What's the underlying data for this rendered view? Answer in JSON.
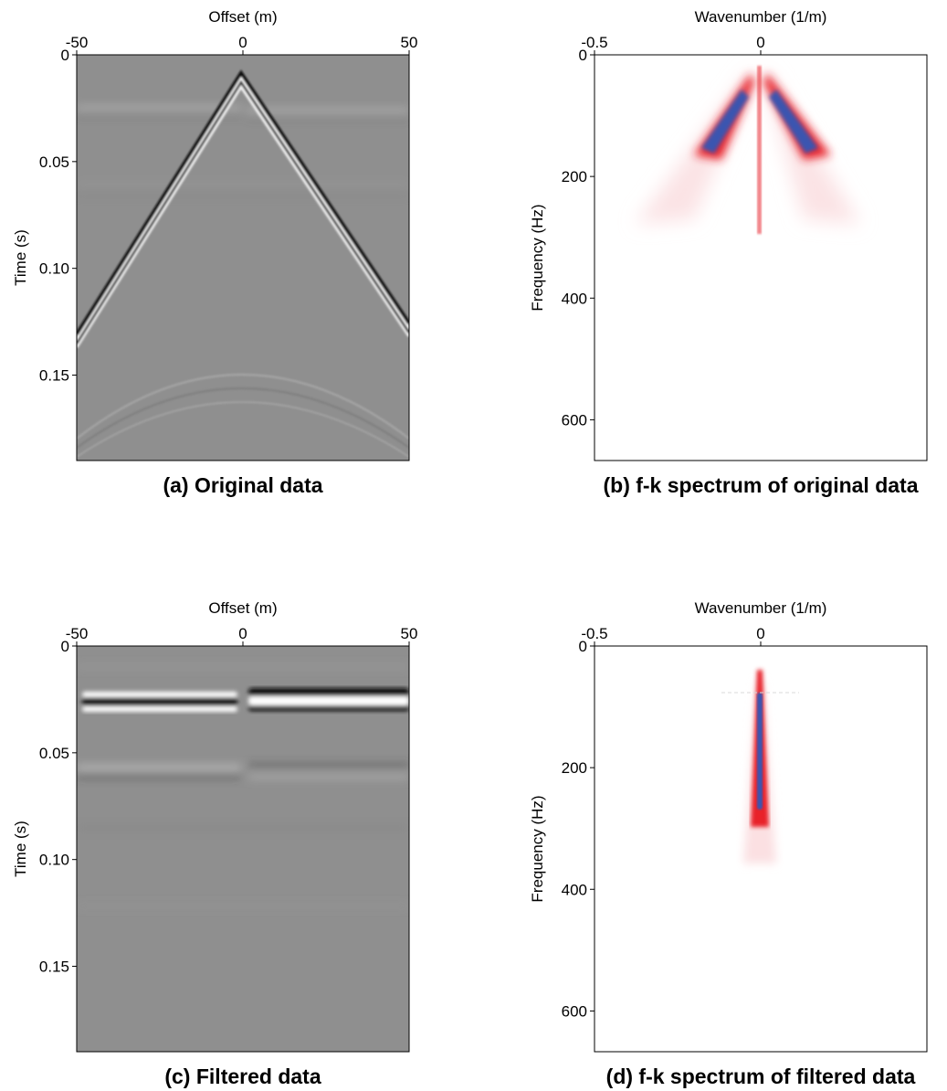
{
  "panels": [
    {
      "id": "a",
      "kind": "seismic",
      "caption": "(a) Original data",
      "x_axis_title": "Offset (m)",
      "y_axis_title": "Time (s)",
      "x_ticks": [
        {
          "value": -50,
          "label": "-50"
        },
        {
          "value": 0,
          "label": "0"
        },
        {
          "value": 50,
          "label": "50"
        }
      ],
      "y_ticks": [
        {
          "value": 0,
          "label": "0"
        },
        {
          "value": 0.05,
          "label": "0.05"
        },
        {
          "value": 0.1,
          "label": "0.10"
        },
        {
          "value": 0.15,
          "label": "0.15"
        }
      ],
      "xlim": [
        -50,
        50
      ],
      "ylim": [
        0,
        0.19
      ],
      "background_color": "#8f8f8f"
    },
    {
      "id": "b",
      "kind": "spectrum",
      "caption": "(b) f-k spectrum of original data",
      "x_axis_title": "Wavenumber (1/m)",
      "y_axis_title": "Frequency (Hz)",
      "x_ticks": [
        {
          "value": -0.5,
          "label": "-0.5"
        },
        {
          "value": 0,
          "label": "0"
        }
      ],
      "y_ticks": [
        {
          "value": 0,
          "label": "0"
        },
        {
          "value": 200,
          "label": "200"
        },
        {
          "value": 400,
          "label": "400"
        },
        {
          "value": 600,
          "label": "600"
        }
      ],
      "xlim": [
        -0.5,
        0.5
      ],
      "ylim": [
        0,
        667
      ]
    },
    {
      "id": "c",
      "kind": "seismic",
      "caption": "(c) Filtered data",
      "x_axis_title": "Offset (m)",
      "y_axis_title": "Time (s)",
      "x_ticks": [
        {
          "value": -50,
          "label": "-50"
        },
        {
          "value": 0,
          "label": "0"
        },
        {
          "value": 50,
          "label": "50"
        }
      ],
      "y_ticks": [
        {
          "value": 0,
          "label": "0"
        },
        {
          "value": 0.05,
          "label": "0.05"
        },
        {
          "value": 0.1,
          "label": "0.10"
        },
        {
          "value": 0.15,
          "label": "0.15"
        }
      ],
      "xlim": [
        -50,
        50
      ],
      "ylim": [
        0,
        0.19
      ],
      "background_color": "#8f8f8f"
    },
    {
      "id": "d",
      "kind": "spectrum",
      "caption": "(d) f-k spectrum of filtered data",
      "x_axis_title": "Wavenumber (1/m)",
      "y_axis_title": "Frequency (Hz)",
      "x_ticks": [
        {
          "value": -0.5,
          "label": "-0.5"
        },
        {
          "value": 0,
          "label": "0"
        }
      ],
      "y_ticks": [
        {
          "value": 0,
          "label": "0"
        },
        {
          "value": 200,
          "label": "200"
        },
        {
          "value": 400,
          "label": "400"
        },
        {
          "value": 600,
          "label": "600"
        }
      ],
      "xlim": [
        -0.5,
        0.5
      ],
      "ylim": [
        0,
        667
      ]
    }
  ],
  "colors": {
    "spectrum_high": "#3b55b0",
    "spectrum_mid": "#e8202a",
    "spectrum_low": "#fbe0e2",
    "wavelet_dark": "#111111",
    "wavelet_light": "#ffffff"
  }
}
